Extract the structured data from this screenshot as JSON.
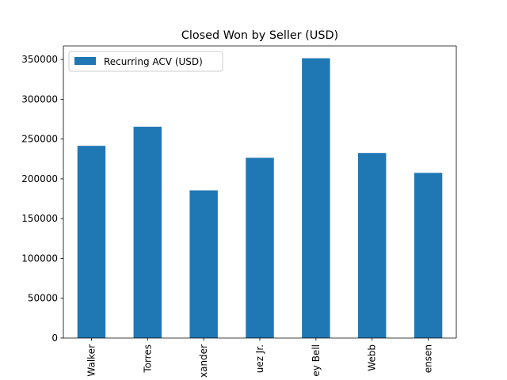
{
  "chart_data": {
    "type": "bar",
    "title": "Closed Won by Seller (USD)",
    "xlabel": "",
    "ylabel": "",
    "categories": [
      "Walker",
      "Torres",
      "xander",
      "uez Jr.",
      "ey Bell",
      "Webb",
      "ensen"
    ],
    "series": [
      {
        "name": "Recurring ACV (USD)",
        "values": [
          241500,
          265500,
          185500,
          226500,
          351500,
          232500,
          207500
        ],
        "color": "#1f77b4"
      }
    ],
    "ylim": [
      0,
      367000
    ],
    "yticks": [
      0,
      50000,
      100000,
      150000,
      200000,
      250000,
      300000,
      350000
    ],
    "grid": false,
    "legend_position": "top-left"
  }
}
